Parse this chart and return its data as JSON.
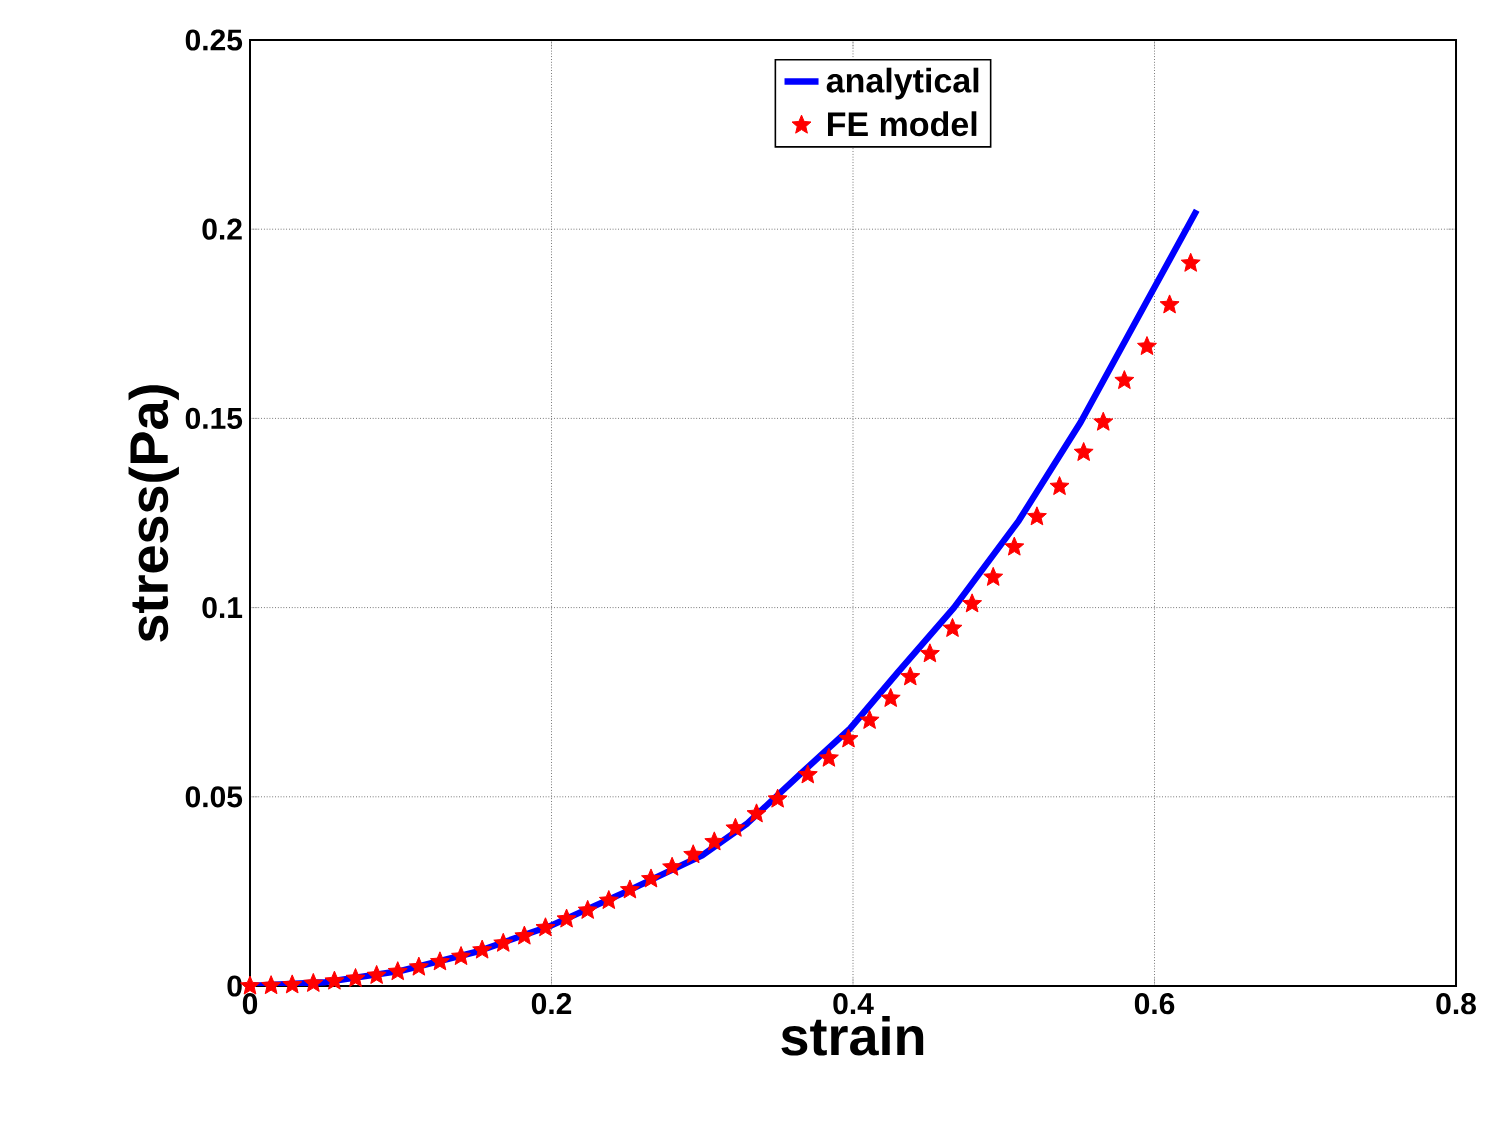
{
  "chart_data": {
    "type": "line",
    "xlabel": "strain",
    "ylabel": "stress(Pa)",
    "xlim": [
      0,
      0.8
    ],
    "ylim": [
      0,
      0.25
    ],
    "xticks": [
      0,
      0.2,
      0.4,
      0.6,
      0.8
    ],
    "yticks": [
      0,
      0.05,
      0.1,
      0.15,
      0.2,
      0.25
    ],
    "grid": true,
    "legend": "top",
    "series": [
      {
        "name": "analytical",
        "color": "#0000ff",
        "marker": "none",
        "line_style": "solid",
        "x": [
          0,
          0.05,
          0.1,
          0.15,
          0.2,
          0.25,
          0.3,
          0.33,
          0.365,
          0.398,
          0.43,
          0.467,
          0.51,
          0.551,
          0.595,
          0.628
        ],
        "values": [
          0,
          0.001,
          0.004,
          0.009,
          0.016,
          0.025,
          0.0345,
          0.043,
          0.056,
          0.068,
          0.083,
          0.1,
          0.123,
          0.149,
          0.181,
          0.205
        ]
      },
      {
        "name": "FE model",
        "type": "scatter",
        "color": "#ff0000",
        "marker": "star",
        "x": [
          0,
          0.014,
          0.028,
          0.042,
          0.056,
          0.07,
          0.084,
          0.098,
          0.112,
          0.126,
          0.14,
          0.154,
          0.168,
          0.182,
          0.196,
          0.21,
          0.224,
          0.238,
          0.252,
          0.266,
          0.28,
          0.294,
          0.308,
          0.322,
          0.336,
          0.35,
          0.37,
          0.384,
          0.397,
          0.411,
          0.425,
          0.438,
          0.451,
          0.466,
          0.479,
          0.493,
          0.507,
          0.522,
          0.537,
          0.553,
          0.566,
          0.58,
          0.595,
          0.61,
          0.624
        ],
        "values": [
          0,
          0.0001,
          0.0003,
          0.0007,
          0.0013,
          0.002,
          0.0028,
          0.0038,
          0.005,
          0.0064,
          0.0078,
          0.0095,
          0.0113,
          0.0132,
          0.0154,
          0.0177,
          0.02,
          0.0226,
          0.0254,
          0.0283,
          0.0314,
          0.0347,
          0.0381,
          0.0417,
          0.0455,
          0.0494,
          0.0558,
          0.0602,
          0.0653,
          0.0702,
          0.076,
          0.0817,
          0.0878,
          0.0945,
          0.101,
          0.108,
          0.116,
          0.124,
          0.132,
          0.141,
          0.149,
          0.16,
          0.169,
          0.18,
          0.191
        ]
      }
    ]
  }
}
